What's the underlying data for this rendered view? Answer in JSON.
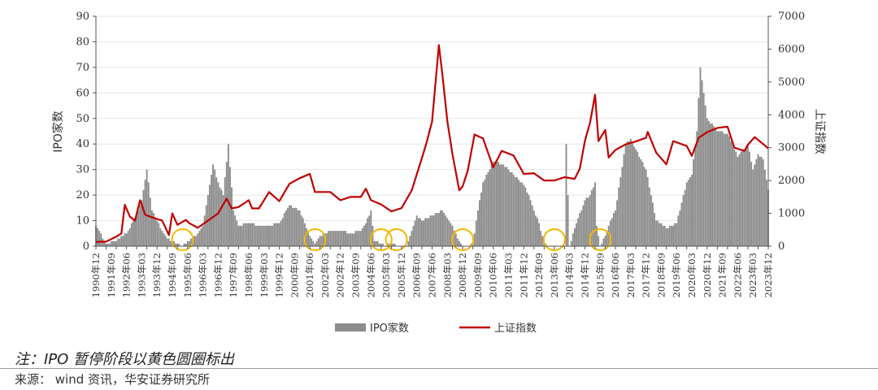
{
  "chart_data": {
    "type": "bar+line",
    "left_axis": {
      "label": "IPO家数",
      "ylim": [
        0,
        90
      ],
      "ticks": [
        "0",
        "10",
        "20",
        "30",
        "40",
        "50",
        "60",
        "70",
        "80",
        "90"
      ]
    },
    "right_axis": {
      "label": "上证指数",
      "ylim": [
        0,
        7000
      ],
      "ticks": [
        "0",
        "1000",
        "2000",
        "3000",
        "4000",
        "5000",
        "6000",
        "7000"
      ]
    },
    "x_range": [
      "1990-12",
      "2023-12"
    ],
    "x_ticks": [
      "1990-12",
      "1991-06",
      "1991-12",
      "1992-06",
      "1992-12",
      "1993-06",
      "1993-12",
      "1994-06",
      "1994-12",
      "1995-06",
      "1995-12",
      "1996-06",
      "1996-12",
      "1997-06",
      "1997-12",
      "1998-06",
      "1998-12",
      "1999-06",
      "1999-12",
      "2000-06",
      "2000-12",
      "2001-06",
      "2001-12",
      "2002-06",
      "2002-12",
      "2003-06",
      "2003-12",
      "2004-06",
      "2004-12",
      "2005-06",
      "2005-12",
      "2006-06",
      "2006-12",
      "2007-06",
      "2007-12",
      "2008-06",
      "2008-12",
      "2009-06",
      "2009-12",
      "2010-06",
      "2010-12",
      "2011-06",
      "2011-12",
      "2012-06",
      "2012-12",
      "2013-06",
      "2013-12",
      "2014-06",
      "2014-12",
      "2015-06",
      "2015-12",
      "2016-06",
      "2016-12",
      "2017-06",
      "2017-12",
      "2018-06",
      "2018-12",
      "2019-06",
      "2019-12",
      "2020-06",
      "2020-12",
      "2021-06",
      "2021-12",
      "2022-06",
      "2022-12",
      "2023-06",
      "2023-12"
    ],
    "x_tick_labels": [
      "1990-12",
      "1991-09",
      "1992-06",
      "1993-03",
      "1993-12",
      "1994-09",
      "1995-06",
      "1996-03",
      "1996-12",
      "1997-09",
      "1998-06",
      "1999-03",
      "1999-12",
      "2000-09",
      "2001-06",
      "2002-03",
      "2002-12",
      "2003-09",
      "2004-06",
      "2005-03",
      "2005-12",
      "2006-09",
      "2007-06",
      "2008-03",
      "2008-12",
      "2009-09",
      "2010-06",
      "2011-03",
      "2011-12",
      "2012-09",
      "2013-06",
      "2014-03",
      "2014-12",
      "2015-09",
      "2016-06",
      "2017-03",
      "2017-12",
      "2018-09",
      "2019-06",
      "2020-03",
      "2020-12",
      "2021-09",
      "2022-06",
      "2023-03",
      "2023-12"
    ],
    "series": [
      {
        "name": "IPO家数",
        "type": "bar",
        "color": "#8c8c8c",
        "keypoints": [
          [
            "1990-12",
            8
          ],
          [
            "1991-06",
            1
          ],
          [
            "1991-12",
            2
          ],
          [
            "1992-06",
            5
          ],
          [
            "1992-12",
            12
          ],
          [
            "1993-03",
            18
          ],
          [
            "1993-06",
            30
          ],
          [
            "1993-09",
            14
          ],
          [
            "1993-12",
            10
          ],
          [
            "1994-03",
            6
          ],
          [
            "1994-06",
            3
          ],
          [
            "1994-09",
            2
          ],
          [
            "1994-12",
            1
          ],
          [
            "1995-03",
            0
          ],
          [
            "1995-06",
            2
          ],
          [
            "1995-09",
            3
          ],
          [
            "1995-12",
            5
          ],
          [
            "1996-03",
            8
          ],
          [
            "1996-06",
            20
          ],
          [
            "1996-09",
            32
          ],
          [
            "1996-12",
            25
          ],
          [
            "1997-03",
            20
          ],
          [
            "1997-06",
            40
          ],
          [
            "1997-09",
            14
          ],
          [
            "1997-12",
            8
          ],
          [
            "1998-06",
            9
          ],
          [
            "1998-12",
            8
          ],
          [
            "1999-06",
            8
          ],
          [
            "1999-12",
            9
          ],
          [
            "2000-06",
            16
          ],
          [
            "2000-12",
            14
          ],
          [
            "2001-03",
            9
          ],
          [
            "2001-06",
            4
          ],
          [
            "2001-09",
            1
          ],
          [
            "2001-12",
            4
          ],
          [
            "2002-06",
            6
          ],
          [
            "2002-12",
            6
          ],
          [
            "2003-06",
            5
          ],
          [
            "2003-12",
            6
          ],
          [
            "2004-03",
            9
          ],
          [
            "2004-06",
            14
          ],
          [
            "2004-08",
            2
          ],
          [
            "2004-12",
            1
          ],
          [
            "2005-03",
            0
          ],
          [
            "2005-06",
            2
          ],
          [
            "2005-09",
            0
          ],
          [
            "2006-03",
            0
          ],
          [
            "2006-06",
            6
          ],
          [
            "2006-09",
            12
          ],
          [
            "2006-12",
            10
          ],
          [
            "2007-06",
            12
          ],
          [
            "2007-12",
            14
          ],
          [
            "2008-06",
            8
          ],
          [
            "2008-09",
            3
          ],
          [
            "2008-12",
            0
          ],
          [
            "2009-03",
            0
          ],
          [
            "2009-06",
            1
          ],
          [
            "2009-09",
            14
          ],
          [
            "2009-12",
            25
          ],
          [
            "2010-06",
            33
          ],
          [
            "2010-12",
            32
          ],
          [
            "2011-06",
            28
          ],
          [
            "2011-12",
            24
          ],
          [
            "2012-03",
            20
          ],
          [
            "2012-06",
            14
          ],
          [
            "2012-09",
            9
          ],
          [
            "2012-12",
            1
          ],
          [
            "2013-03",
            0
          ],
          [
            "2013-12",
            0
          ],
          [
            "2014-01",
            40
          ],
          [
            "2014-03",
            0
          ],
          [
            "2014-06",
            7
          ],
          [
            "2014-12",
            18
          ],
          [
            "2015-03",
            20
          ],
          [
            "2015-06",
            25
          ],
          [
            "2015-07",
            8
          ],
          [
            "2015-09",
            0
          ],
          [
            "2015-12",
            4
          ],
          [
            "2016-03",
            10
          ],
          [
            "2016-06",
            14
          ],
          [
            "2016-12",
            40
          ],
          [
            "2017-03",
            42
          ],
          [
            "2017-06",
            38
          ],
          [
            "2017-12",
            30
          ],
          [
            "2018-06",
            10
          ],
          [
            "2018-12",
            7
          ],
          [
            "2019-06",
            9
          ],
          [
            "2019-12",
            25
          ],
          [
            "2020-03",
            28
          ],
          [
            "2020-06",
            45
          ],
          [
            "2020-08",
            70
          ],
          [
            "2020-12",
            50
          ],
          [
            "2021-06",
            45
          ],
          [
            "2021-12",
            44
          ],
          [
            "2022-06",
            35
          ],
          [
            "2022-12",
            40
          ],
          [
            "2023-03",
            30
          ],
          [
            "2023-06",
            36
          ],
          [
            "2023-09",
            34
          ],
          [
            "2023-12",
            22
          ]
        ]
      },
      {
        "name": "上证指数",
        "type": "line",
        "color": "#c00000",
        "keypoints": [
          [
            "1990-12",
            128
          ],
          [
            "1991-06",
            140
          ],
          [
            "1991-12",
            290
          ],
          [
            "1992-03",
            390
          ],
          [
            "1992-05",
            1260
          ],
          [
            "1992-08",
            900
          ],
          [
            "1992-11",
            780
          ],
          [
            "1993-02",
            1400
          ],
          [
            "1993-05",
            960
          ],
          [
            "1993-08",
            900
          ],
          [
            "1993-12",
            830
          ],
          [
            "1994-03",
            780
          ],
          [
            "1994-07",
            340
          ],
          [
            "1994-09",
            1000
          ],
          [
            "1994-12",
            650
          ],
          [
            "1995-05",
            800
          ],
          [
            "1995-07",
            700
          ],
          [
            "1995-12",
            560
          ],
          [
            "1996-06",
            780
          ],
          [
            "1996-12",
            1000
          ],
          [
            "1997-05",
            1450
          ],
          [
            "1997-08",
            1150
          ],
          [
            "1997-12",
            1190
          ],
          [
            "1998-06",
            1400
          ],
          [
            "1998-08",
            1150
          ],
          [
            "1998-12",
            1150
          ],
          [
            "1999-06",
            1650
          ],
          [
            "1999-12",
            1370
          ],
          [
            "2000-06",
            1900
          ],
          [
            "2000-12",
            2070
          ],
          [
            "2001-06",
            2200
          ],
          [
            "2001-09",
            1650
          ],
          [
            "2001-12",
            1650
          ],
          [
            "2002-06",
            1650
          ],
          [
            "2002-12",
            1400
          ],
          [
            "2003-06",
            1500
          ],
          [
            "2003-12",
            1500
          ],
          [
            "2004-03",
            1750
          ],
          [
            "2004-06",
            1400
          ],
          [
            "2004-12",
            1270
          ],
          [
            "2005-06",
            1060
          ],
          [
            "2005-12",
            1160
          ],
          [
            "2006-06",
            1700
          ],
          [
            "2006-12",
            2680
          ],
          [
            "2007-03",
            3200
          ],
          [
            "2007-06",
            3800
          ],
          [
            "2007-10",
            6124
          ],
          [
            "2007-12",
            5260
          ],
          [
            "2008-03",
            3800
          ],
          [
            "2008-06",
            2800
          ],
          [
            "2008-10",
            1700
          ],
          [
            "2008-12",
            1820
          ],
          [
            "2009-03",
            2300
          ],
          [
            "2009-07",
            3400
          ],
          [
            "2009-12",
            3280
          ],
          [
            "2010-06",
            2400
          ],
          [
            "2010-11",
            2900
          ],
          [
            "2011-06",
            2760
          ],
          [
            "2011-12",
            2200
          ],
          [
            "2012-06",
            2220
          ],
          [
            "2012-12",
            2000
          ],
          [
            "2013-06",
            2000
          ],
          [
            "2013-12",
            2100
          ],
          [
            "2014-06",
            2050
          ],
          [
            "2014-09",
            2360
          ],
          [
            "2014-12",
            3200
          ],
          [
            "2015-03",
            3750
          ],
          [
            "2015-06",
            4610
          ],
          [
            "2015-08",
            3200
          ],
          [
            "2015-12",
            3540
          ],
          [
            "2016-02",
            2700
          ],
          [
            "2016-06",
            2930
          ],
          [
            "2016-12",
            3100
          ],
          [
            "2017-06",
            3190
          ],
          [
            "2017-12",
            3300
          ],
          [
            "2018-01",
            3480
          ],
          [
            "2018-06",
            2850
          ],
          [
            "2018-12",
            2490
          ],
          [
            "2019-04",
            3200
          ],
          [
            "2019-12",
            3050
          ],
          [
            "2020-03",
            2750
          ],
          [
            "2020-07",
            3300
          ],
          [
            "2020-12",
            3470
          ],
          [
            "2021-06",
            3600
          ],
          [
            "2021-12",
            3640
          ],
          [
            "2022-04",
            3000
          ],
          [
            "2022-10",
            2900
          ],
          [
            "2022-12",
            3090
          ],
          [
            "2023-04",
            3320
          ],
          [
            "2023-09",
            3110
          ],
          [
            "2023-12",
            2975
          ]
        ]
      }
    ],
    "highlight_circles": [
      {
        "date": "1995-03",
        "value": 0
      },
      {
        "date": "2001-09",
        "value": 0
      },
      {
        "date": "2004-12",
        "value": 0
      },
      {
        "date": "2005-09",
        "value": 0
      },
      {
        "date": "2008-12",
        "value": 0
      },
      {
        "date": "2013-06",
        "value": 0
      },
      {
        "date": "2015-09",
        "value": 0
      }
    ],
    "highlight_color": "#f5b800",
    "legend": {
      "placement": "bottom-center"
    }
  },
  "note": "注：IPO 暂停阶段以黄色圆圈标出",
  "source": "来源： wind 资讯，华安证券研究所"
}
